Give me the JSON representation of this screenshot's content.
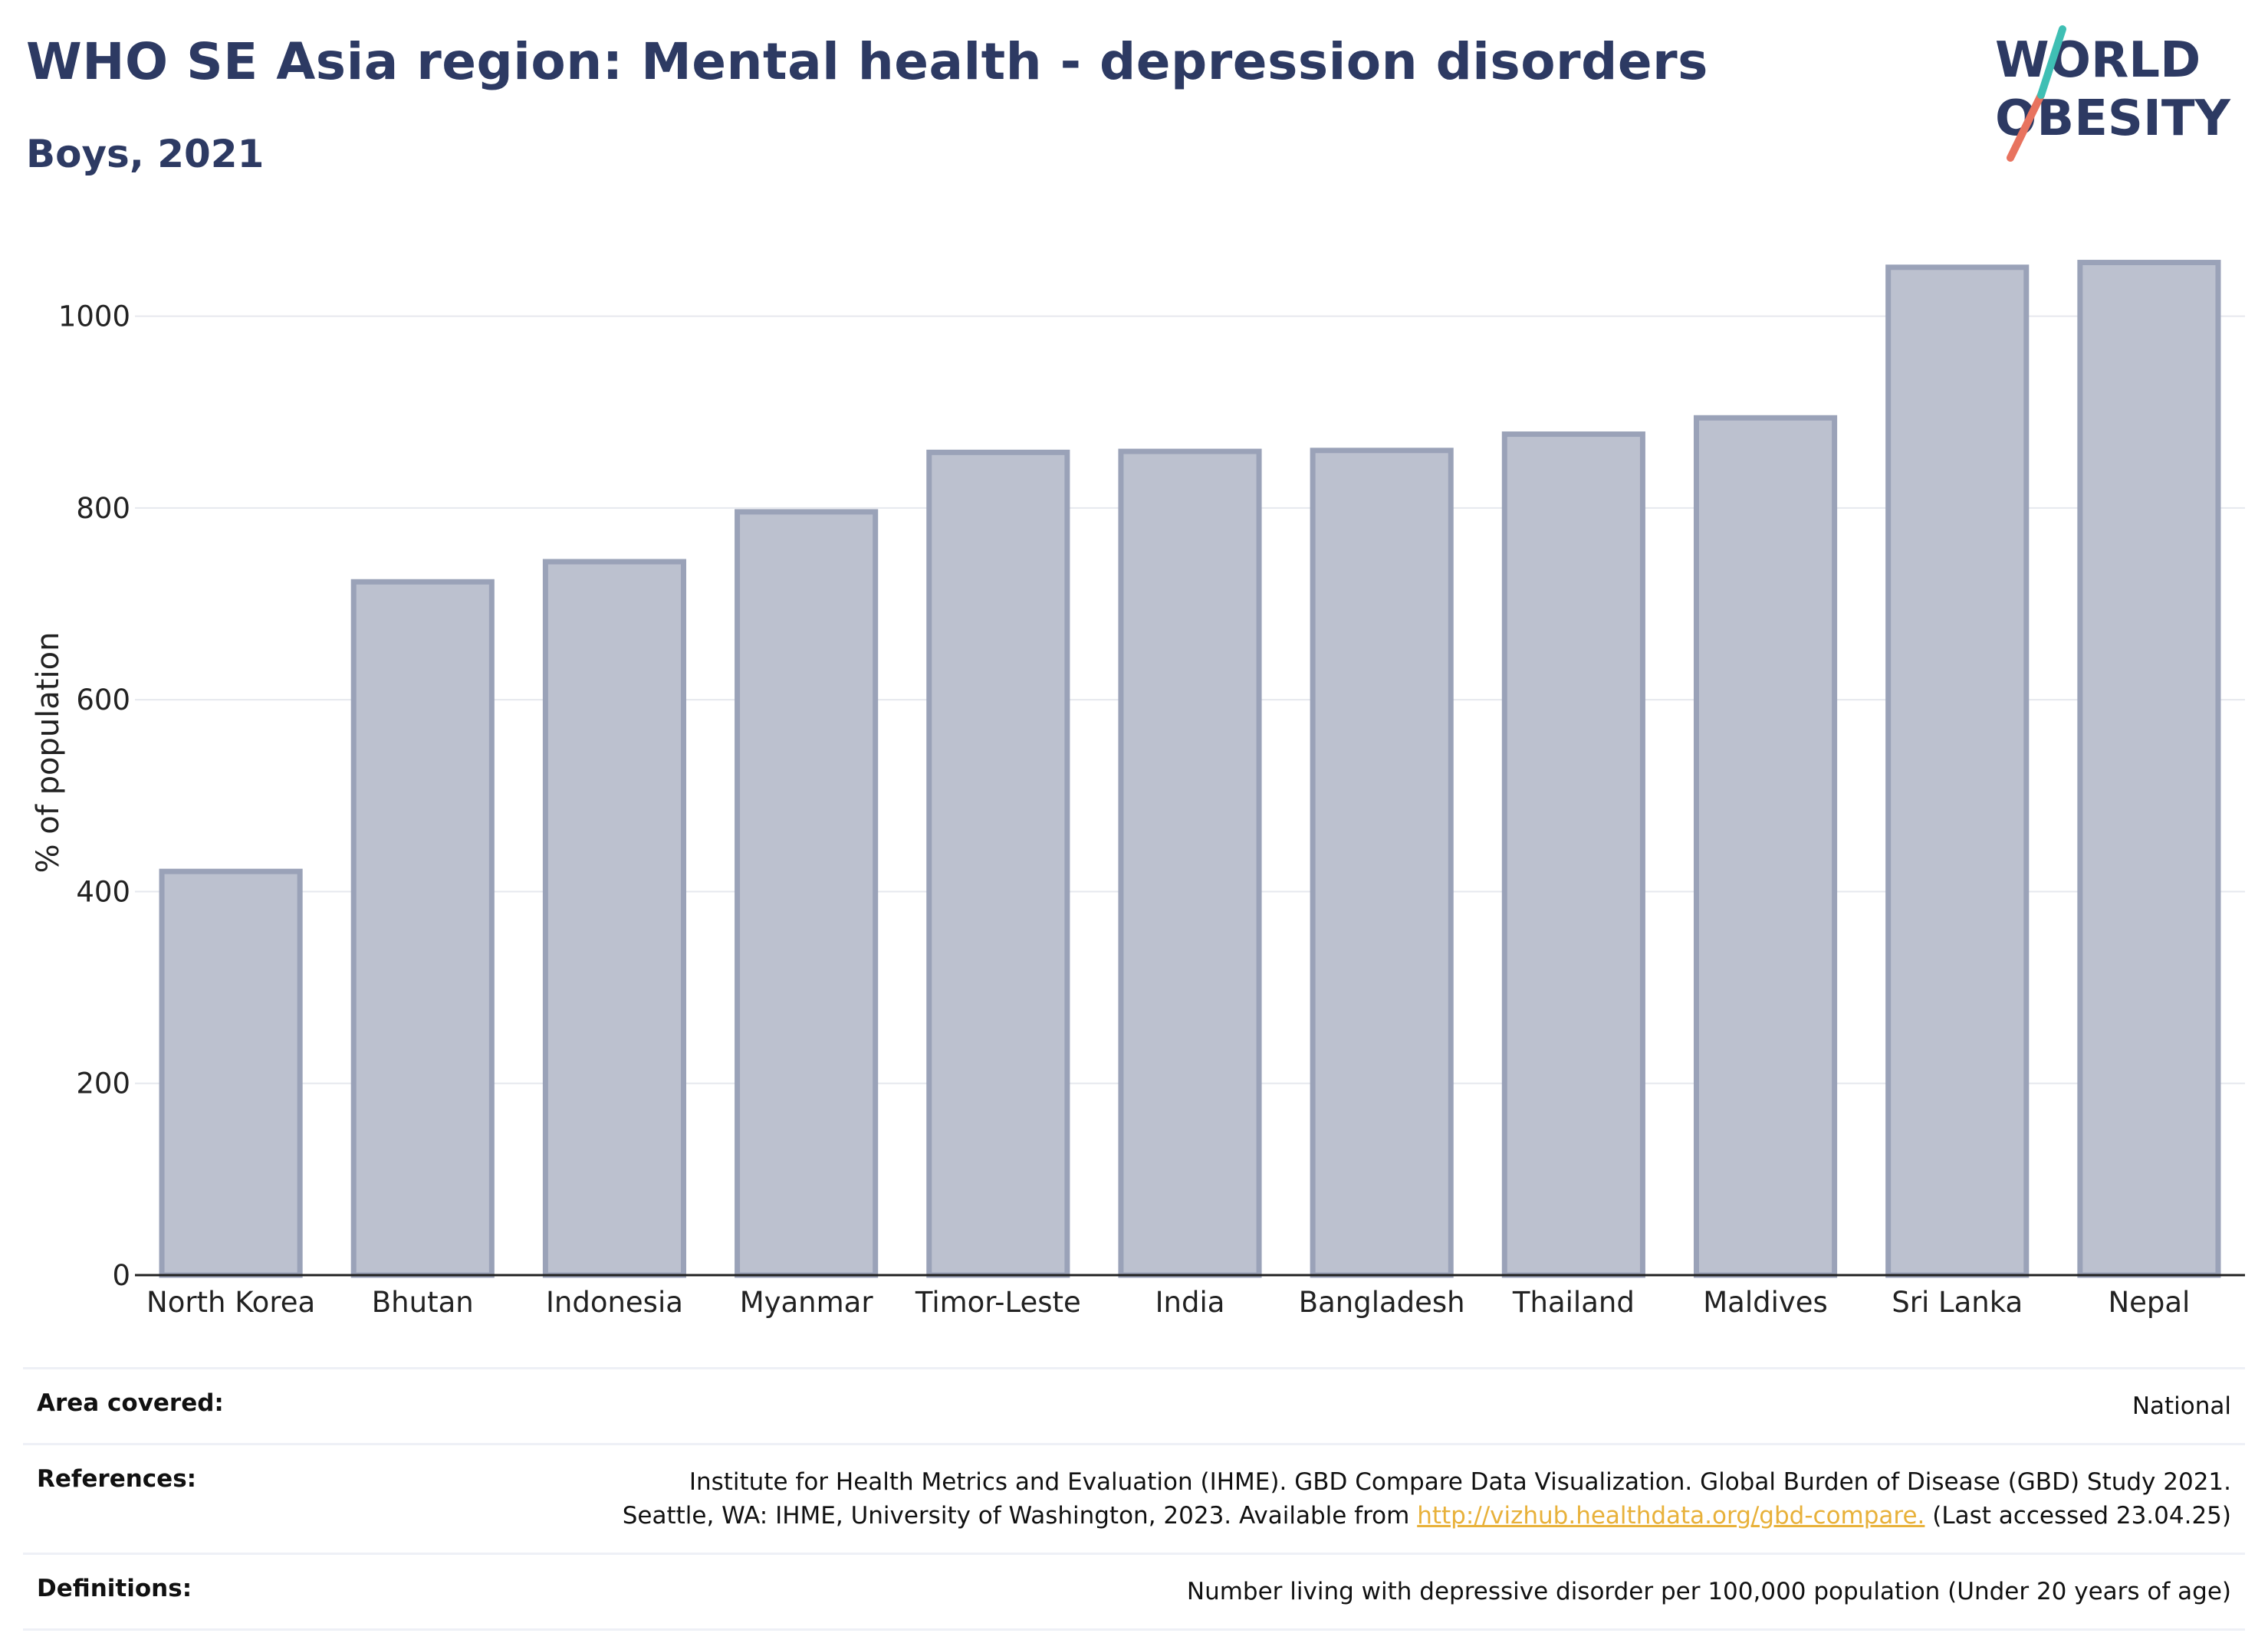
{
  "header": {
    "title": "WHO SE Asia region: Mental health - depression disorders",
    "subtitle": "Boys, 2021"
  },
  "logo": {
    "line1": "WORLD",
    "line2": "OBESITY"
  },
  "chart_data": {
    "type": "bar",
    "categories": [
      "North Korea",
      "Bhutan",
      "Indonesia",
      "Myanmar",
      "Timor-Leste",
      "India",
      "Bangladesh",
      "Thailand",
      "Maldives",
      "Sri Lanka",
      "Nepal"
    ],
    "values": [
      421,
      723,
      744,
      796,
      858,
      859,
      860,
      877,
      894,
      1051,
      1056
    ],
    "title": "WHO SE Asia region: Mental health - depression disorders",
    "subtitle": "Boys, 2021",
    "xlabel": "",
    "ylabel": "% of population",
    "ylim": [
      0,
      1090
    ],
    "yticks": [
      0,
      200,
      400,
      600,
      800,
      1000
    ],
    "grid": true,
    "colors": {
      "bar_fill": "#bcc1cf",
      "bar_stroke": "#9aa2b8",
      "grid": "#e6e8ee",
      "axis": "#222222"
    }
  },
  "footer": {
    "area_label": "Area covered:",
    "area_value": "National",
    "references_label": "References:",
    "references_line1": "Institute for Health Metrics and Evaluation (IHME). GBD Compare Data Visualization. Global Burden of Disease (GBD) Study 2021.",
    "references_line2_pre": "Seattle, WA: IHME, University of Washington, 2023. Available from ",
    "references_link": "http://vizhub.healthdata.org/gbd-compare.",
    "references_line2_post": " (Last accessed 23.04.25)",
    "definitions_label": "Definitions:",
    "definitions_value": "Number living with depressive disorder per 100,000 population (Under 20 years of age)"
  }
}
